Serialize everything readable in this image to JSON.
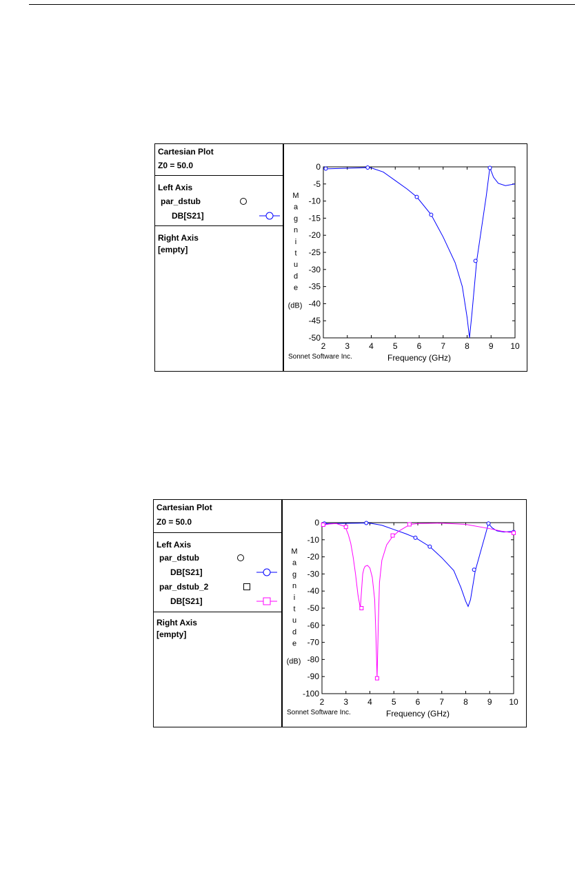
{
  "chart_data": [
    {
      "type": "line",
      "legend_panel": {
        "title": "Cartesian Plot",
        "z0": "Z0 = 50.0",
        "left_axis_label": "Left Axis",
        "right_axis_label": "Right Axis",
        "right_axis_value": "[empty]",
        "entries": [
          {
            "project": "par_dstub",
            "project_marker": "circle",
            "trace": "DB[S21]",
            "color": "#0000ff"
          }
        ]
      },
      "ylabel_letters": [
        "M",
        "a",
        "g",
        "n",
        "i",
        "t",
        "u",
        "d",
        "e"
      ],
      "ylabel_unit": "(dB)",
      "xlabel": "Frequency (GHz)",
      "credit": "Sonnet Software Inc.",
      "xlim": [
        2,
        10
      ],
      "ylim": [
        -50,
        0
      ],
      "xticks": [
        2,
        3,
        4,
        5,
        6,
        7,
        8,
        9,
        10
      ],
      "yticks": [
        0,
        -5,
        -10,
        -15,
        -20,
        -25,
        -30,
        -35,
        -40,
        -45,
        -50
      ],
      "series": [
        {
          "color": "#0000ff",
          "marker": "circle",
          "x": [
            2.0,
            2.5,
            3.0,
            3.5,
            3.8,
            4.0,
            4.5,
            5.0,
            5.5,
            5.9,
            6.5,
            7.0,
            7.5,
            7.8,
            8.0,
            8.1,
            8.2,
            8.4,
            8.6,
            8.8,
            8.95,
            9.1,
            9.3,
            9.6,
            10.0
          ],
          "y": [
            -0.6,
            -0.5,
            -0.4,
            -0.3,
            -0.2,
            -0.3,
            -1.5,
            -4.0,
            -6.5,
            -8.8,
            -14.0,
            -20.5,
            -28.0,
            -35.0,
            -44.0,
            -50.0,
            -43.0,
            -27.5,
            -18.0,
            -8.5,
            -0.2,
            -3.0,
            -4.8,
            -5.5,
            -5.0
          ],
          "marker_x": [
            2.1,
            3.85,
            5.9,
            6.5,
            8.35,
            8.95
          ],
          "marker_y": [
            -0.5,
            -0.2,
            -8.8,
            -14.0,
            -27.5,
            -0.3
          ]
        }
      ]
    },
    {
      "type": "line",
      "legend_panel": {
        "title": "Cartesian Plot",
        "z0": "Z0 = 50.0",
        "left_axis_label": "Left Axis",
        "right_axis_label": "Right Axis",
        "right_axis_value": "[empty]",
        "entries": [
          {
            "project": "par_dstub",
            "project_marker": "circle",
            "trace": "DB[S21]",
            "color": "#0000ff"
          },
          {
            "project": "par_dstub_2",
            "project_marker": "square",
            "trace": "DB[S21]",
            "color": "#ff00ff"
          }
        ]
      },
      "ylabel_letters": [
        "M",
        "a",
        "g",
        "n",
        "i",
        "t",
        "u",
        "d",
        "e"
      ],
      "ylabel_unit": "(dB)",
      "xlabel": "Frequency (GHz)",
      "credit": "Sonnet Software Inc.",
      "xlim": [
        2,
        10
      ],
      "ylim": [
        -100,
        0
      ],
      "xticks": [
        2,
        3,
        4,
        5,
        6,
        7,
        8,
        9,
        10
      ],
      "yticks": [
        0,
        -10,
        -20,
        -30,
        -40,
        -50,
        -60,
        -70,
        -80,
        -90,
        -100
      ],
      "series": [
        {
          "color": "#0000ff",
          "marker": "circle",
          "x": [
            2.0,
            2.5,
            3.0,
            3.5,
            3.8,
            4.0,
            4.5,
            5.0,
            5.5,
            5.9,
            6.5,
            7.0,
            7.5,
            7.8,
            8.0,
            8.1,
            8.2,
            8.4,
            8.6,
            8.8,
            8.95,
            9.1,
            9.3,
            9.6,
            10.0
          ],
          "y": [
            -0.6,
            -0.5,
            -0.4,
            -0.3,
            -0.2,
            -0.3,
            -1.5,
            -4.0,
            -6.5,
            -8.8,
            -14.0,
            -20.5,
            -28.0,
            -38.0,
            -46.0,
            -49.0,
            -45.0,
            -28.0,
            -18.0,
            -8.0,
            -0.5,
            -3.0,
            -4.8,
            -5.5,
            -5.0
          ],
          "marker_x": [
            2.1,
            3.85,
            5.9,
            6.5,
            8.35,
            8.95,
            10.0
          ],
          "marker_y": [
            -0.5,
            -0.2,
            -8.8,
            -14.0,
            -27.5,
            -0.5,
            -5.5
          ]
        },
        {
          "color": "#ff00ff",
          "marker": "square",
          "x": [
            2.0,
            2.3,
            2.6,
            2.9,
            3.0,
            3.1,
            3.2,
            3.3,
            3.4,
            3.5,
            3.6,
            3.65,
            3.7,
            3.75,
            3.8,
            3.9,
            4.0,
            4.1,
            4.2,
            4.25,
            4.3,
            4.35,
            4.4,
            4.5,
            4.7,
            4.9,
            5.0,
            5.2,
            5.5,
            5.7,
            6.0,
            7.0,
            8.0,
            9.0,
            9.5,
            10.0
          ],
          "y": [
            -1.5,
            -0.8,
            -0.5,
            -2.0,
            -3.5,
            -7.0,
            -12.0,
            -20.0,
            -30.0,
            -42.0,
            -50.0,
            -40.0,
            -30.0,
            -27.0,
            -25.5,
            -25.0,
            -26.5,
            -32.0,
            -45.0,
            -65.0,
            -91.0,
            -60.0,
            -35.0,
            -22.0,
            -13.0,
            -9.0,
            -7.5,
            -5.0,
            -2.5,
            -1.0,
            -0.5,
            -0.3,
            -1.0,
            -3.5,
            -5.0,
            -6.0
          ],
          "marker_x": [
            2.05,
            3.0,
            3.65,
            4.3,
            4.95,
            5.65,
            10.0
          ],
          "marker_y": [
            -1.2,
            -2.5,
            -50.0,
            -91.0,
            -7.5,
            -1.0,
            -6.0
          ]
        }
      ]
    }
  ]
}
